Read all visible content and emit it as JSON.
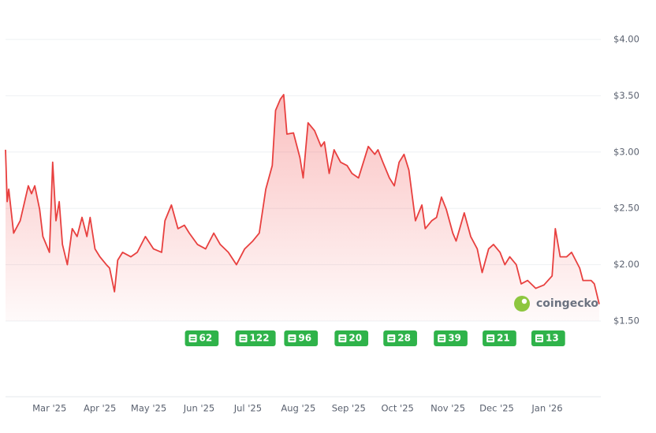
{
  "chart_data": {
    "type": "line",
    "color": "#e8403f",
    "xlim": [
      0,
      365
    ],
    "ylim": [
      1.5,
      4.0
    ],
    "yticks": [
      {
        "value": 1.5,
        "label": "$1.50"
      },
      {
        "value": 2.0,
        "label": "$2.00"
      },
      {
        "value": 2.5,
        "label": "$2.50"
      },
      {
        "value": 3.0,
        "label": "$3.00"
      },
      {
        "value": 3.5,
        "label": "$3.50"
      },
      {
        "value": 4.0,
        "label": "$4.00"
      }
    ],
    "xticks": [
      {
        "value": 27,
        "label": "Mar '25"
      },
      {
        "value": 58,
        "label": "Apr '25"
      },
      {
        "value": 88,
        "label": "May '25"
      },
      {
        "value": 119,
        "label": "Jun '25"
      },
      {
        "value": 149,
        "label": "Jul '25"
      },
      {
        "value": 180,
        "label": "Aug '25"
      },
      {
        "value": 211,
        "label": "Sep '25"
      },
      {
        "value": 241,
        "label": "Oct '25"
      },
      {
        "value": 272,
        "label": "Nov '25"
      },
      {
        "value": 302,
        "label": "Dec '25"
      },
      {
        "value": 333,
        "label": "Jan '26"
      }
    ],
    "grid": true,
    "x": [
      0,
      1,
      2,
      5,
      9,
      14,
      16,
      18,
      21,
      23,
      27,
      29,
      31,
      33,
      35,
      38,
      41,
      44,
      47,
      50,
      52,
      55,
      58,
      62,
      64,
      67,
      69,
      72,
      77,
      81,
      86,
      91,
      96,
      98,
      102,
      106,
      110,
      113,
      118,
      123,
      128,
      132,
      137,
      142,
      147,
      152,
      156,
      160,
      164,
      166,
      169,
      171,
      173,
      177,
      181,
      183,
      186,
      190,
      194,
      196,
      199,
      202,
      206,
      210,
      213,
      217,
      220,
      223,
      227,
      229,
      232,
      236,
      239,
      242,
      245,
      248,
      252,
      256,
      258,
      262,
      265,
      268,
      271,
      275,
      277,
      282,
      286,
      290,
      293,
      297,
      300,
      304,
      307,
      310,
      314,
      317,
      321,
      326,
      331,
      336,
      338,
      341,
      345,
      348,
      353,
      355,
      360,
      362,
      365
    ],
    "values": [
      3.02,
      2.56,
      2.67,
      2.28,
      2.39,
      2.7,
      2.63,
      2.7,
      2.49,
      2.25,
      2.11,
      2.91,
      2.39,
      2.56,
      2.18,
      2.0,
      2.32,
      2.25,
      2.42,
      2.25,
      2.42,
      2.14,
      2.07,
      2.0,
      1.97,
      1.76,
      2.04,
      2.11,
      2.07,
      2.11,
      2.25,
      2.14,
      2.11,
      2.39,
      2.53,
      2.32,
      2.35,
      2.28,
      2.18,
      2.14,
      2.28,
      2.18,
      2.11,
      2.0,
      2.14,
      2.21,
      2.28,
      2.67,
      2.88,
      3.37,
      3.47,
      3.51,
      3.16,
      3.17,
      2.95,
      2.77,
      3.26,
      3.19,
      3.05,
      3.09,
      2.81,
      3.02,
      2.91,
      2.88,
      2.81,
      2.77,
      2.91,
      3.05,
      2.98,
      3.02,
      2.91,
      2.77,
      2.7,
      2.91,
      2.98,
      2.84,
      2.39,
      2.53,
      2.32,
      2.39,
      2.42,
      2.6,
      2.49,
      2.28,
      2.21,
      2.46,
      2.25,
      2.14,
      1.93,
      2.14,
      2.18,
      2.11,
      2.0,
      2.07,
      2.0,
      1.83,
      1.86,
      1.79,
      1.82,
      1.9,
      2.32,
      2.07,
      2.07,
      2.11,
      1.97,
      1.86,
      1.86,
      1.83,
      1.65
    ],
    "news": [
      {
        "x": 120,
        "count": 62
      },
      {
        "x": 151,
        "count": 122
      },
      {
        "x": 181,
        "count": 96
      },
      {
        "x": 212,
        "count": 20
      },
      {
        "x": 242,
        "count": 28
      },
      {
        "x": 273,
        "count": 39
      },
      {
        "x": 303,
        "count": 21
      },
      {
        "x": 333,
        "count": 13
      }
    ],
    "watermark": "coingecko"
  }
}
